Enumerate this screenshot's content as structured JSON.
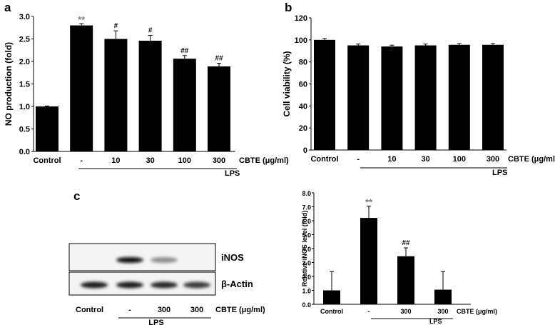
{
  "chart_data": [
    {
      "panel": "a",
      "type": "bar",
      "ylabel": "NO production (fold)",
      "ylim": [
        0,
        3.0
      ],
      "yticks": [
        "0.0",
        "0.5",
        "1.0",
        "1.5",
        "2.0",
        "2.5",
        "3.0"
      ],
      "categories": [
        "Control",
        "-",
        "10",
        "30",
        "100",
        "300"
      ],
      "values": [
        1.0,
        2.8,
        2.5,
        2.46,
        2.06,
        1.89
      ],
      "errors": [
        0.01,
        0.04,
        0.18,
        0.12,
        0.07,
        0.07
      ],
      "annotations": [
        "",
        "**",
        "#",
        "#",
        "##",
        "##"
      ],
      "unit_label": "CBTE  (μg/ml)",
      "group_label": "LPS"
    },
    {
      "panel": "b",
      "type": "bar",
      "ylabel": "Cell viability (%)",
      "ylim": [
        0,
        120
      ],
      "yticks": [
        "0",
        "20",
        "40",
        "60",
        "80",
        "100",
        "120"
      ],
      "categories": [
        "Control",
        "-",
        "10",
        "30",
        "100",
        "300"
      ],
      "values": [
        100,
        95,
        94,
        95,
        95.5,
        95.5
      ],
      "errors": [
        1.2,
        1.2,
        1.2,
        1.2,
        1.2,
        1.2
      ],
      "unit_label": "CBTE  (μg/ml)",
      "group_label": "LPS"
    },
    {
      "panel": "c",
      "type": "bar",
      "ylabel": "Relative iNOS level (fold)",
      "ylim": [
        0,
        8.0
      ],
      "yticks": [
        "0.0",
        "1.0",
        "2.0",
        "3.0",
        "4.0",
        "5.0",
        "6.0",
        "7.0",
        "8.0"
      ],
      "categories": [
        "Control",
        "-",
        "300",
        "300"
      ],
      "values": [
        1.0,
        6.2,
        3.45,
        1.05
      ],
      "errors": [
        1.35,
        0.85,
        0.6,
        1.3
      ],
      "annotations": [
        "",
        "**",
        "##",
        ""
      ],
      "unit_label": "CBTE  (μg/ml)",
      "group_label": "LPS"
    }
  ],
  "blot": {
    "bands": [
      "iNOS",
      "β-Actin"
    ],
    "lanes": [
      "Control",
      "-",
      "300",
      "300"
    ],
    "unit_label": "CBTE  (μg/ml)",
    "group_label": "LPS",
    "inos_intensity": [
      0,
      1.0,
      0.3,
      0
    ],
    "actin_intensity": [
      0.9,
      0.9,
      0.85,
      0.75
    ]
  }
}
